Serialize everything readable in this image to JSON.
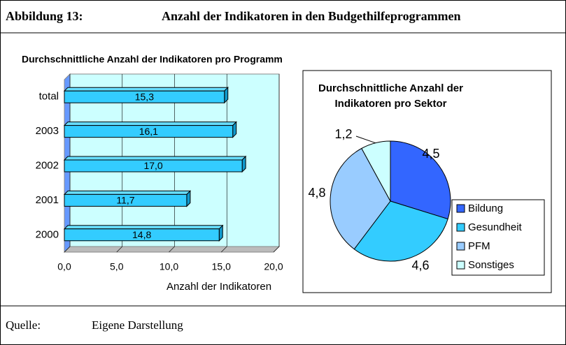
{
  "figure": {
    "label": "Abbildung 13:",
    "title": "Anzahl der Indikatoren in den Budgethilfeprogrammen",
    "source_label": "Quelle:",
    "source": "Eigene Darstellung"
  },
  "chart_data": [
    {
      "type": "hbar",
      "title": "Durchschnittliche Anzahl der Indikatoren pro Programm",
      "categories": [
        "total",
        "2003",
        "2002",
        "2001",
        "2000"
      ],
      "values": [
        15.3,
        16.1,
        17.0,
        11.7,
        14.8
      ],
      "value_labels": [
        "15,3",
        "16,1",
        "17,0",
        "11,7",
        "14,8"
      ],
      "color": "#33ccff",
      "xlabel": "Anzahl der Indikatoren",
      "xlim": [
        0,
        20
      ],
      "xticks": [
        {
          "value": 0,
          "label": "0,0"
        },
        {
          "value": 5,
          "label": "5,0"
        },
        {
          "value": 10,
          "label": "10,0"
        },
        {
          "value": 15,
          "label": "15,0"
        },
        {
          "value": 20,
          "label": "20,0"
        }
      ],
      "grid": true
    },
    {
      "type": "pie",
      "title": "Durchschnittliche Anzahl der Indikatoren pro Sektor",
      "categories": [
        "Bildung",
        "Gesundheit",
        "PFM",
        "Sonstiges"
      ],
      "values": [
        4.5,
        4.6,
        4.8,
        1.2
      ],
      "value_labels": [
        "4,5",
        "4,6",
        "4,8",
        "1,2"
      ],
      "colors": [
        "#3366ff",
        "#33ccff",
        "#99ccff",
        "#ccffff"
      ]
    }
  ]
}
